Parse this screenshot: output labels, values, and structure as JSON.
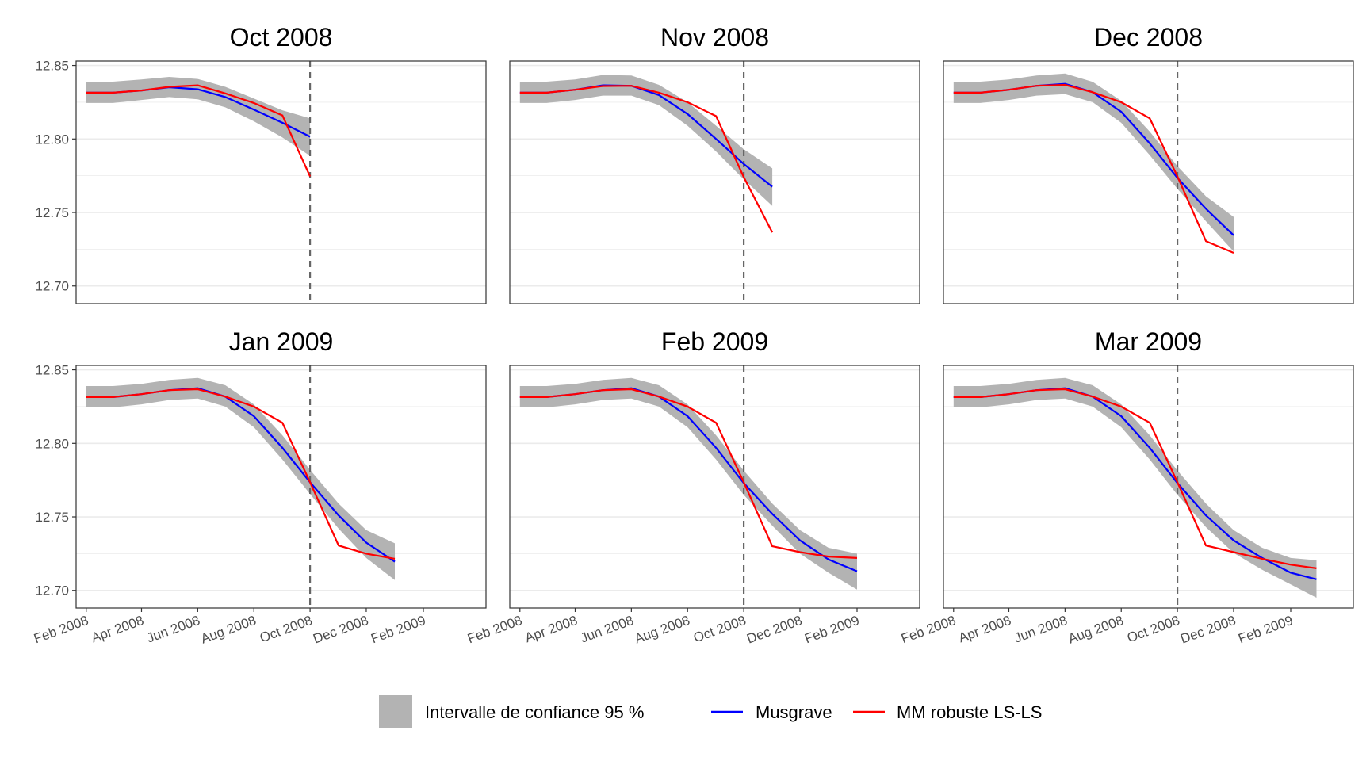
{
  "chart_data": {
    "type": "line",
    "x": [
      "2008-02",
      "2008-03",
      "2008-04",
      "2008-05",
      "2008-06",
      "2008-07",
      "2008-08",
      "2008-09",
      "2008-10",
      "2008-11",
      "2008-12",
      "2009-01",
      "2009-02",
      "2009-03"
    ],
    "xticks": [
      {
        "x": "2008-02",
        "label": "Feb 2008"
      },
      {
        "x": "2008-04",
        "label": "Apr 2008"
      },
      {
        "x": "2008-06",
        "label": "Jun 2008"
      },
      {
        "x": "2008-08",
        "label": "Aug 2008"
      },
      {
        "x": "2008-10",
        "label": "Oct 2008"
      },
      {
        "x": "2008-12",
        "label": "Dec 2008"
      },
      {
        "x": "2009-02",
        "label": "Feb 2009"
      }
    ],
    "xlim": [
      "2008-01-21",
      "2009-04-10"
    ],
    "ylim": [
      12.688,
      12.853
    ],
    "yticks": [
      "12.70",
      "12.75",
      "12.80",
      "12.85"
    ],
    "xlabel": "",
    "ylabel": "",
    "grid": true,
    "legend": {
      "position": "bottom",
      "items": [
        {
          "key": "ci",
          "label": "Intervalle de confiance 95 %",
          "kind": "band"
        },
        {
          "key": "musgrave",
          "label": "Musgrave",
          "kind": "line"
        },
        {
          "key": "mm",
          "label": "MM robuste LS-LS",
          "kind": "line"
        }
      ]
    },
    "colors": {
      "ci": "#b3b3b3",
      "musgrave": "#0000ff",
      "mm": "#ff0000",
      "vline": "#666666",
      "grid": "#ebebeb",
      "border": "#333333"
    },
    "panels": [
      {
        "title": "Oct 2008",
        "vline": "2008-10",
        "musgrave": [
          12.8315,
          12.8315,
          12.833,
          12.8352,
          12.8338,
          12.8285,
          12.82,
          12.811,
          12.8015
        ],
        "lower": [
          12.8245,
          12.8245,
          12.8265,
          12.8285,
          12.827,
          12.8215,
          12.812,
          12.801,
          12.7885
        ],
        "upper": [
          12.839,
          12.839,
          12.8405,
          12.8422,
          12.8408,
          12.8355,
          12.8275,
          12.8195,
          12.814
        ],
        "mm": [
          12.8315,
          12.8315,
          12.833,
          12.8355,
          12.8365,
          12.831,
          12.8245,
          12.816,
          12.7745
        ]
      },
      {
        "title": "Nov 2008",
        "vline": "2008-10",
        "musgrave": [
          12.8315,
          12.8315,
          12.8335,
          12.8365,
          12.8362,
          12.8298,
          12.817,
          12.8,
          12.783,
          12.7675
        ],
        "lower": [
          12.8245,
          12.8245,
          12.8265,
          12.8295,
          12.8295,
          12.823,
          12.809,
          12.7915,
          12.7725,
          12.7545
        ],
        "upper": [
          12.839,
          12.839,
          12.8405,
          12.8435,
          12.8432,
          12.8368,
          12.825,
          12.809,
          12.793,
          12.78
        ],
        "mm": [
          12.8315,
          12.8315,
          12.8335,
          12.836,
          12.8362,
          12.8315,
          12.825,
          12.8155,
          12.774,
          12.7365
        ]
      },
      {
        "title": "Dec 2008",
        "vline": "2008-10",
        "musgrave": [
          12.8315,
          12.8315,
          12.8335,
          12.8362,
          12.8375,
          12.8318,
          12.8185,
          12.797,
          12.7735,
          12.7525,
          12.7345
        ],
        "lower": [
          12.8245,
          12.8245,
          12.8265,
          12.8295,
          12.8305,
          12.825,
          12.811,
          12.789,
          12.766,
          12.744,
          12.7235
        ],
        "upper": [
          12.839,
          12.839,
          12.8405,
          12.8432,
          12.8445,
          12.8388,
          12.826,
          12.805,
          12.7815,
          12.761,
          12.747
        ],
        "mm": [
          12.8315,
          12.8315,
          12.8335,
          12.8362,
          12.8368,
          12.8318,
          12.825,
          12.814,
          12.7745,
          12.7305,
          12.7225
        ]
      },
      {
        "title": "Jan 2009",
        "vline": "2008-10",
        "musgrave": [
          12.8315,
          12.8315,
          12.8335,
          12.8362,
          12.8375,
          12.8318,
          12.8185,
          12.797,
          12.7735,
          12.751,
          12.7325,
          12.7195
        ],
        "lower": [
          12.8245,
          12.8245,
          12.8265,
          12.8295,
          12.8305,
          12.825,
          12.811,
          12.789,
          12.7655,
          12.742,
          12.722,
          12.707
        ],
        "upper": [
          12.839,
          12.839,
          12.8405,
          12.8432,
          12.8445,
          12.8395,
          12.8265,
          12.8055,
          12.782,
          12.759,
          12.741,
          12.732
        ],
        "mm": [
          12.8315,
          12.8315,
          12.8335,
          12.8362,
          12.8368,
          12.8318,
          12.825,
          12.814,
          12.7735,
          12.7305,
          12.725,
          12.7215
        ]
      },
      {
        "title": "Feb 2009",
        "vline": "2008-10",
        "musgrave": [
          12.8315,
          12.8315,
          12.8335,
          12.8362,
          12.8375,
          12.8318,
          12.8185,
          12.797,
          12.773,
          12.752,
          12.734,
          12.721,
          12.713
        ],
        "lower": [
          12.8245,
          12.8245,
          12.8265,
          12.8295,
          12.8305,
          12.825,
          12.811,
          12.789,
          12.765,
          12.744,
          12.725,
          12.712,
          12.7005
        ],
        "upper": [
          12.839,
          12.839,
          12.8405,
          12.8432,
          12.8445,
          12.8395,
          12.8265,
          12.8055,
          12.7815,
          12.759,
          12.741,
          12.729,
          12.725
        ],
        "mm": [
          12.8315,
          12.8315,
          12.8335,
          12.8362,
          12.8368,
          12.8318,
          12.825,
          12.814,
          12.7735,
          12.73,
          12.726,
          12.723,
          12.722
        ]
      },
      {
        "title": "Mar 2009",
        "vline": "2008-10",
        "musgrave": [
          12.8315,
          12.8315,
          12.8335,
          12.8362,
          12.8375,
          12.8318,
          12.8185,
          12.797,
          12.773,
          12.751,
          12.734,
          12.722,
          12.712,
          12.7075
        ],
        "lower": [
          12.8245,
          12.8245,
          12.8265,
          12.8295,
          12.8305,
          12.825,
          12.811,
          12.789,
          12.765,
          12.743,
          12.7255,
          12.714,
          12.704,
          12.695
        ],
        "upper": [
          12.839,
          12.839,
          12.8405,
          12.8432,
          12.8445,
          12.8395,
          12.8265,
          12.8055,
          12.7815,
          12.759,
          12.741,
          12.729,
          12.722,
          12.7205
        ],
        "mm": [
          12.8315,
          12.8315,
          12.8335,
          12.8362,
          12.8368,
          12.8318,
          12.825,
          12.814,
          12.7735,
          12.7305,
          12.726,
          12.7215,
          12.7175,
          12.715
        ]
      }
    ]
  }
}
